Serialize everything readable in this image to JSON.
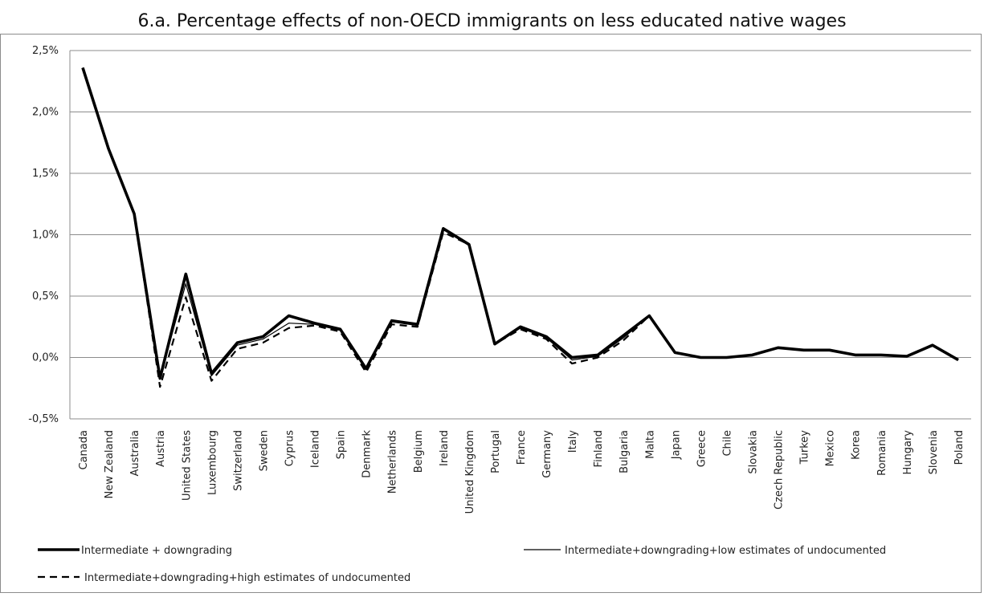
{
  "chart_data": {
    "type": "line",
    "title": "6.a. Percentage effects of non-OECD immigrants on less educated native wages",
    "xlabel": "",
    "ylabel": "",
    "ylim": [
      -0.5,
      2.5
    ],
    "ytick_values": [
      -0.5,
      0.0,
      0.5,
      1.0,
      1.5,
      2.0,
      2.5
    ],
    "ytick_labels": [
      "-0,5%",
      "0,0%",
      "0,5%",
      "1,0%",
      "1,5%",
      "2,0%",
      "2,5%"
    ],
    "grid": "horizontal",
    "legend_position": "bottom",
    "categories": [
      "Canada",
      "New Zealand",
      "Australia",
      "Austria",
      "United States",
      "Luxembourg",
      "Switzerland",
      "Sweden",
      "Cyprus",
      "Iceland",
      "Spain",
      "Denmark",
      "Netherlands",
      "Belgium",
      "Ireland",
      "United Kingdom",
      "Portugal",
      "France",
      "Germany",
      "Italy",
      "Finland",
      "Bulgaria",
      "Malta",
      "Japan",
      "Greece",
      "Chile",
      "Slovakia",
      "Czech Republic",
      "Turkey",
      "Mexico",
      "Korea",
      "Romania",
      "Hungary",
      "Slovenia",
      "Poland"
    ],
    "series": [
      {
        "name": "Intermediate + downgrading",
        "style": "thick",
        "color": "#000000",
        "values": [
          2.36,
          1.7,
          1.17,
          -0.17,
          0.68,
          -0.13,
          0.12,
          0.17,
          0.34,
          0.28,
          0.23,
          -0.09,
          0.3,
          0.27,
          1.05,
          0.92,
          0.11,
          0.25,
          0.17,
          0.0,
          0.02,
          0.18,
          0.34,
          0.04,
          0.0,
          0.0,
          0.02,
          0.08,
          0.06,
          0.06,
          0.02,
          0.02,
          0.01,
          0.1,
          -0.02
        ]
      },
      {
        "name": "Intermediate+downgrading+low estimates of undocumented",
        "style": "thin",
        "color": "#000000",
        "values": [
          2.36,
          1.7,
          1.17,
          -0.17,
          0.6,
          -0.15,
          0.1,
          0.15,
          0.28,
          0.27,
          0.22,
          -0.1,
          0.29,
          0.26,
          1.04,
          0.92,
          0.11,
          0.24,
          0.16,
          -0.02,
          0.01,
          0.16,
          0.34,
          0.04,
          0.0,
          0.0,
          0.02,
          0.08,
          0.06,
          0.06,
          0.02,
          0.02,
          0.01,
          0.1,
          -0.02
        ]
      },
      {
        "name": "Intermediate+downgrading+high estimates of undocumented",
        "style": "dashed",
        "color": "#000000",
        "values": [
          2.36,
          1.7,
          1.17,
          -0.24,
          0.49,
          -0.19,
          0.07,
          0.12,
          0.24,
          0.26,
          0.21,
          -0.12,
          0.27,
          0.25,
          1.02,
          0.92,
          0.11,
          0.23,
          0.15,
          -0.05,
          0.0,
          0.14,
          0.34,
          0.04,
          0.0,
          0.0,
          0.02,
          0.08,
          0.06,
          0.06,
          0.02,
          0.02,
          0.01,
          0.1,
          -0.02
        ]
      }
    ]
  }
}
